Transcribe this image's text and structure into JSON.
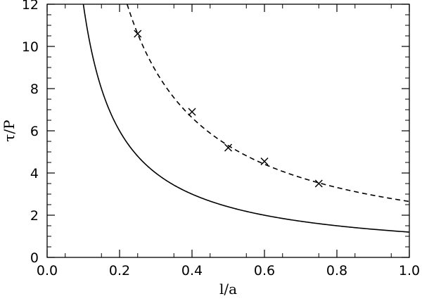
{
  "chart_data": {
    "type": "line",
    "title": "",
    "xlabel": "l/a",
    "ylabel": "τ/P",
    "xlim": [
      0.0,
      1.0
    ],
    "ylim": [
      0,
      12
    ],
    "x_ticks": [
      "0.0",
      "0.2",
      "0.4",
      "0.6",
      "0.8",
      "1.0"
    ],
    "y_ticks": [
      "0",
      "2",
      "4",
      "6",
      "8",
      "10",
      "12"
    ],
    "grid": false,
    "legend": "none",
    "series": [
      {
        "line_style": "solid",
        "color": "#000000",
        "x": [
          0.1,
          0.15,
          0.2,
          0.25,
          0.3,
          0.4,
          0.5,
          0.6,
          0.7,
          0.8,
          0.9,
          1.0
        ],
        "y": [
          12.0,
          8.0,
          6.0,
          4.8,
          4.0,
          3.0,
          2.4,
          2.0,
          1.71,
          1.5,
          1.33,
          1.2
        ]
      },
      {
        "line_style": "dashed",
        "color": "#000000",
        "x": [
          0.22,
          0.25,
          0.3,
          0.4,
          0.5,
          0.6,
          0.7,
          0.8,
          0.9,
          1.0
        ],
        "y": [
          12.0,
          10.6,
          8.83,
          6.63,
          5.3,
          4.42,
          3.79,
          3.31,
          2.94,
          2.65
        ]
      },
      {
        "marker": "cross",
        "color": "#000000",
        "x": [
          0.25,
          0.4,
          0.5,
          0.6,
          0.75
        ],
        "y": [
          10.6,
          6.9,
          5.2,
          4.55,
          3.5
        ]
      }
    ]
  }
}
